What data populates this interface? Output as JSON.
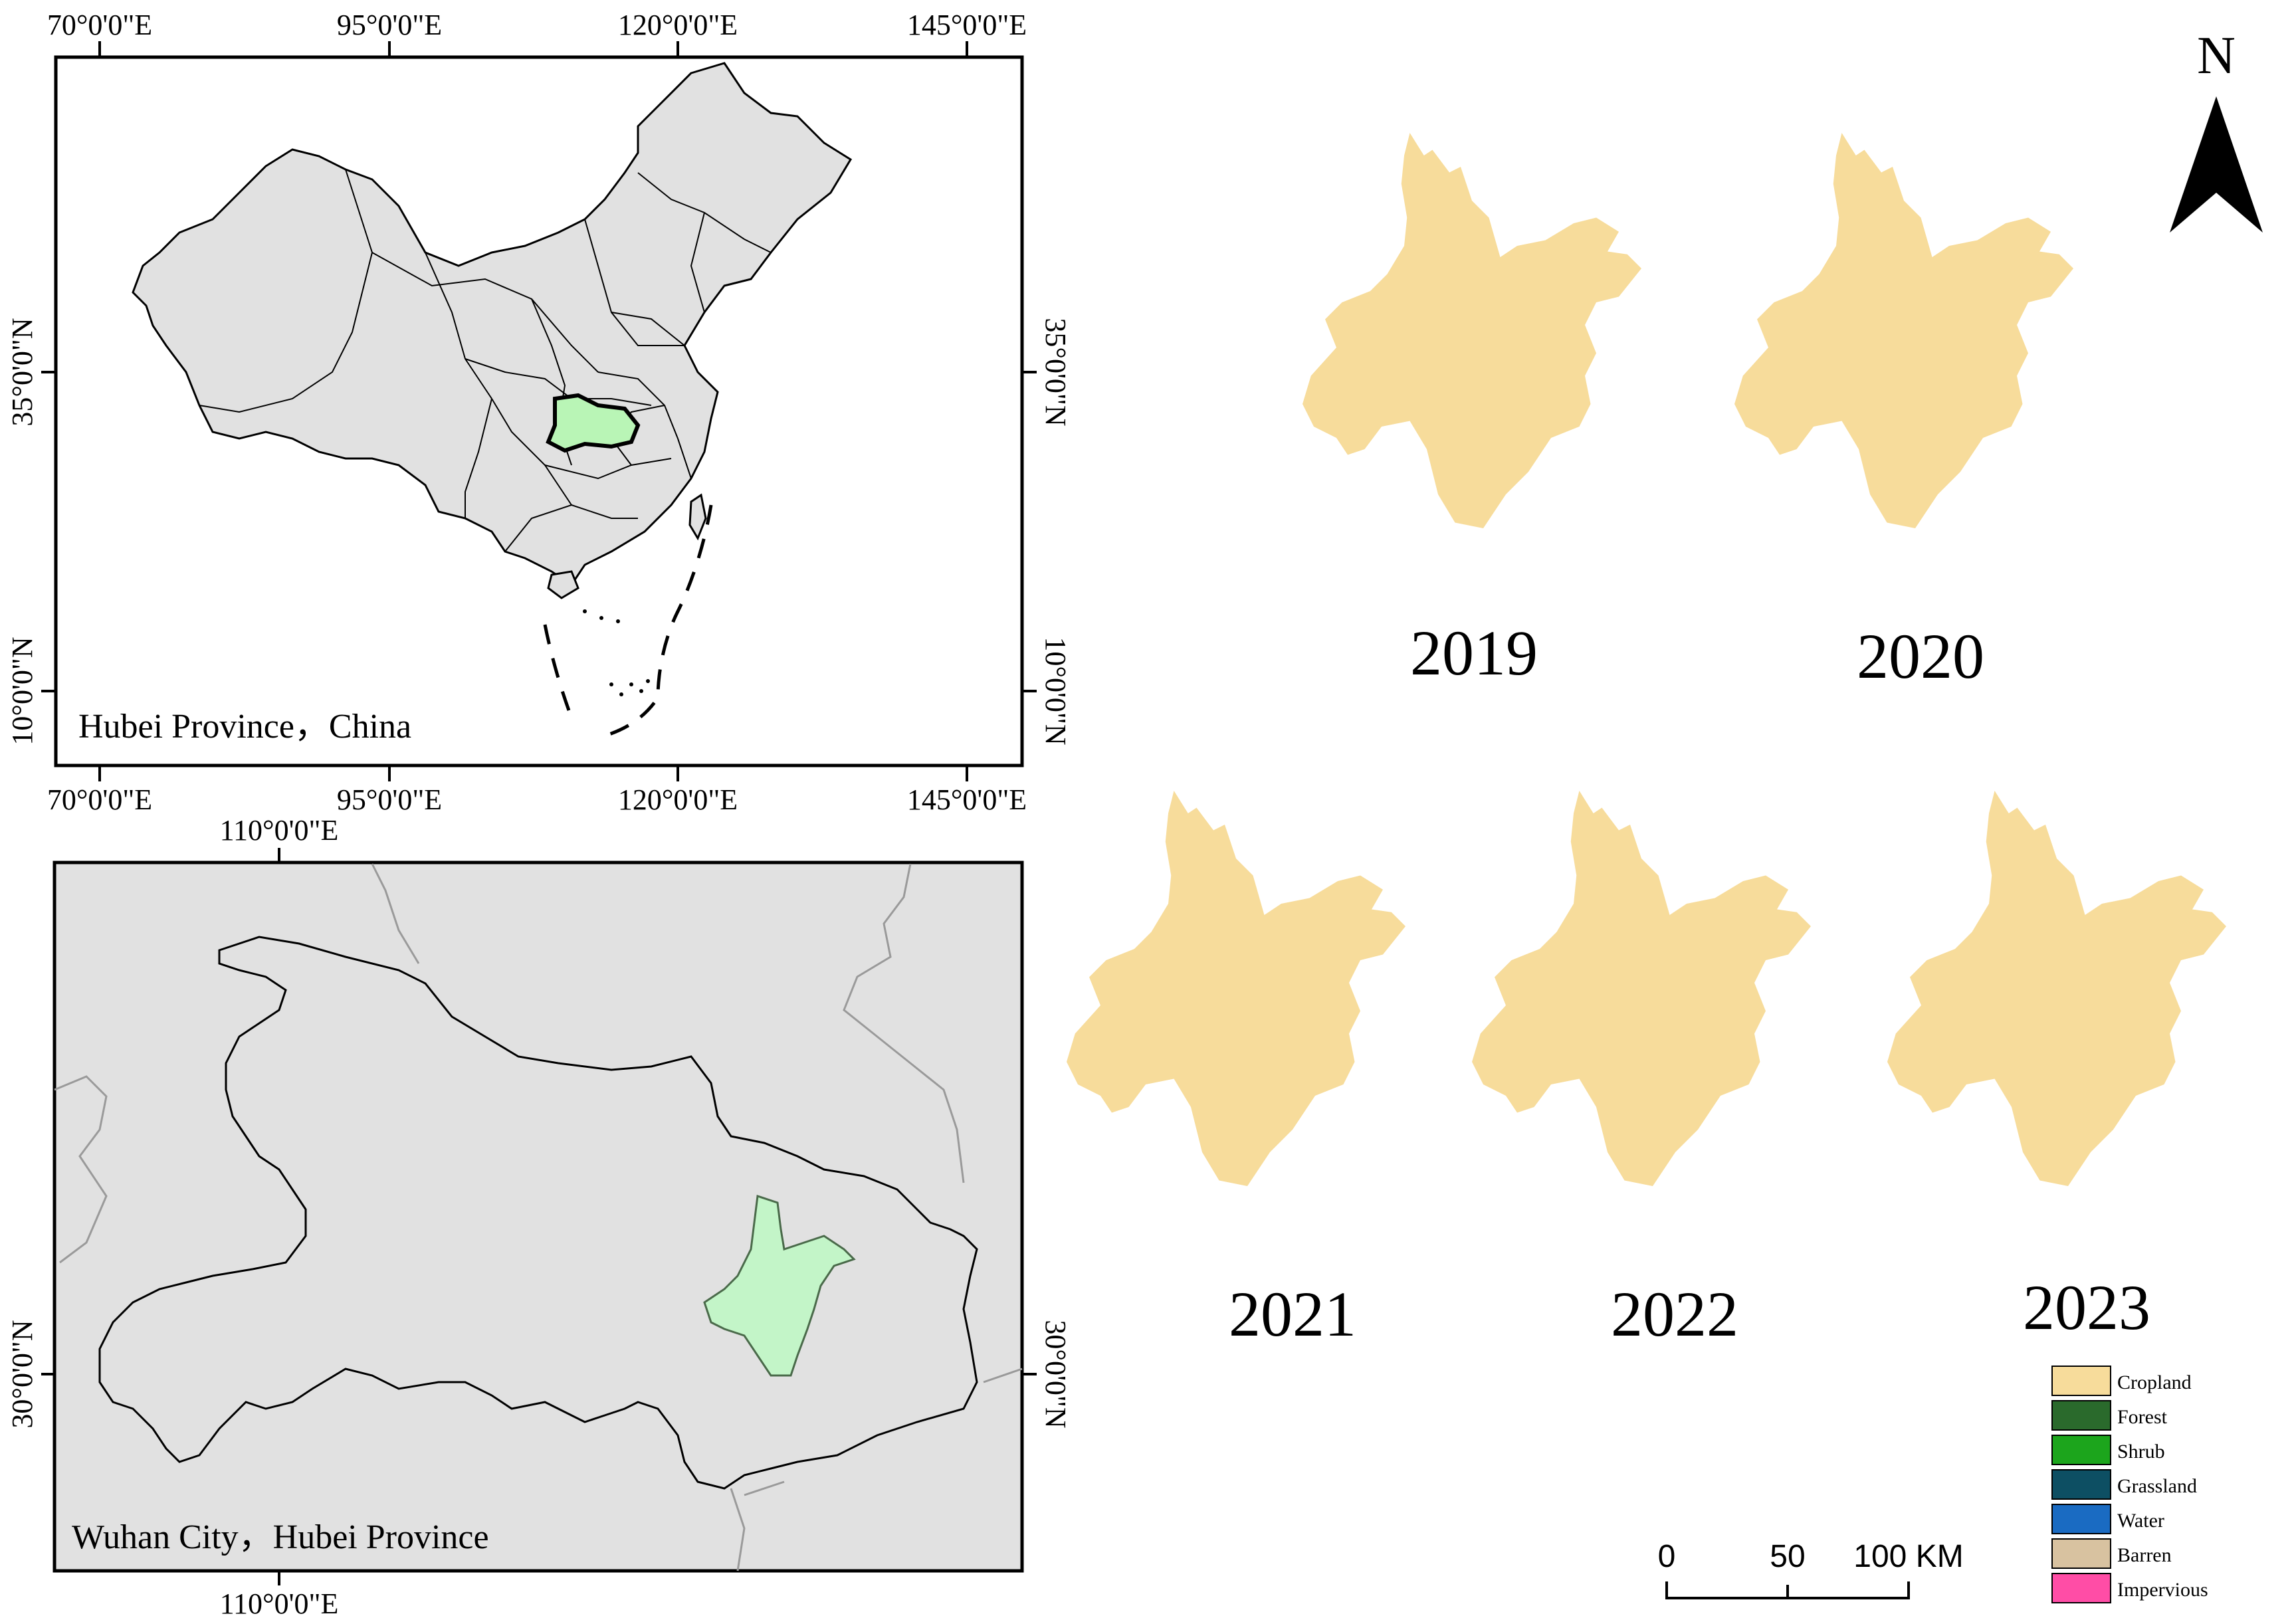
{
  "china_map": {
    "caption": "Hubei Province，China",
    "top_ticks": [
      "70°0'0\"E",
      "95°0'0\"E",
      "120°0'0\"E",
      "145°0'0\"E"
    ],
    "bottom_ticks": [
      "70°0'0\"E",
      "95°0'0\"E",
      "120°0'0\"E",
      "145°0'0\"E"
    ],
    "right_ticks": [
      "35°0'0\"N",
      "10°0'0\"N"
    ],
    "left_ticks": [
      "35°0'0\"N",
      "10°0'0\"N"
    ],
    "highlight_region": "Hubei",
    "highlight_color": "#b9f5b6",
    "land_color": "#e1e1e1"
  },
  "hubei_map": {
    "caption": "Wuhan City，Hubei Province",
    "top_tick": "110°0'0\"E",
    "bottom_tick": "110°0'0\"E",
    "left_tick": "30°0'0\"N",
    "right_tick": "30°0'0\"N",
    "highlight_region": "Wuhan",
    "highlight_color": "#c3f5c8",
    "background_color": "#e1e1e1"
  },
  "year_maps": [
    {
      "year": "2019"
    },
    {
      "year": "2020"
    },
    {
      "year": "2021"
    },
    {
      "year": "2022"
    },
    {
      "year": "2023"
    }
  ],
  "north_arrow": {
    "label": "N"
  },
  "legend": {
    "items": [
      {
        "label": "Cropland",
        "color": "#f7dc9b"
      },
      {
        "label": "Forest",
        "color": "#2a6a2c"
      },
      {
        "label": "Shrub",
        "color": "#1ca51c"
      },
      {
        "label": "Grassland",
        "color": "#0d4f63"
      },
      {
        "label": "Water",
        "color": "#1a6bc2"
      },
      {
        "label": "Barren",
        "color": "#d8c2a0"
      },
      {
        "label": "Impervious",
        "color": "#ff4da6"
      }
    ]
  },
  "scale_bar": {
    "ticks": [
      "0",
      "50",
      "100 KM"
    ]
  }
}
